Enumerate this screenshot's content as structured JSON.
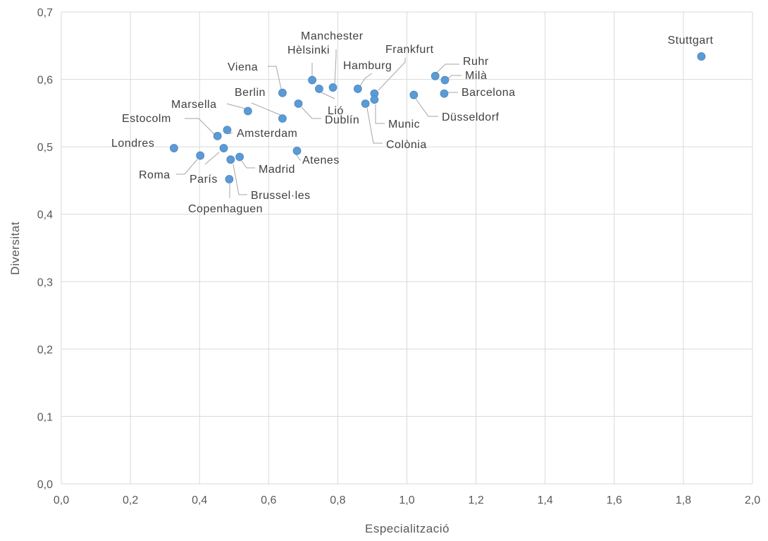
{
  "chart_data": {
    "type": "scatter",
    "title": "",
    "xlabel": "Especialització",
    "ylabel": "Diversitat",
    "xlim": [
      0,
      2.0
    ],
    "ylim": [
      0,
      0.7
    ],
    "xticks": [
      0,
      0.2,
      0.4,
      0.6,
      0.8,
      1.0,
      1.2,
      1.4,
      1.6,
      1.8,
      2.0
    ],
    "yticks": [
      0,
      0.1,
      0.2,
      0.3,
      0.4,
      0.5,
      0.6,
      0.7
    ],
    "xtick_labels": [
      "0,0",
      "0,2",
      "0,4",
      "0,6",
      "0,8",
      "1,0",
      "1,2",
      "1,4",
      "1,6",
      "1,8",
      "2,0"
    ],
    "ytick_labels": [
      "0,0",
      "0,1",
      "0,2",
      "0,3",
      "0,4",
      "0,5",
      "0,6",
      "0,7"
    ],
    "grid": true,
    "marker_color": "#5b9bd5",
    "points": [
      {
        "label": "Stuttgart",
        "x": 1.852,
        "y": 0.634
      },
      {
        "label": "Ruhr",
        "x": 1.082,
        "y": 0.605
      },
      {
        "label": "Milà",
        "x": 1.11,
        "y": 0.599
      },
      {
        "label": "Barcelona",
        "x": 1.108,
        "y": 0.579
      },
      {
        "label": "Düsseldorf",
        "x": 1.02,
        "y": 0.577
      },
      {
        "label": "Frankfurt",
        "x": 0.906,
        "y": 0.579
      },
      {
        "label": "Munic",
        "x": 0.906,
        "y": 0.57
      },
      {
        "label": "Colònia",
        "x": 0.88,
        "y": 0.564
      },
      {
        "label": "Hamburg",
        "x": 0.858,
        "y": 0.586
      },
      {
        "label": "Manchester",
        "x": 0.786,
        "y": 0.588
      },
      {
        "label": "Lió",
        "x": 0.746,
        "y": 0.586
      },
      {
        "label": "Hèlsinki",
        "x": 0.726,
        "y": 0.599
      },
      {
        "label": "Dublín",
        "x": 0.686,
        "y": 0.564
      },
      {
        "label": "Viena",
        "x": 0.64,
        "y": 0.58
      },
      {
        "label": "Berlin",
        "x": 0.64,
        "y": 0.542
      },
      {
        "label": "Marsella",
        "x": 0.54,
        "y": 0.553
      },
      {
        "label": "Amsterdam",
        "x": 0.48,
        "y": 0.525
      },
      {
        "label": "Estocolm",
        "x": 0.452,
        "y": 0.516
      },
      {
        "label": "Londres",
        "x": 0.326,
        "y": 0.498
      },
      {
        "label": "París",
        "x": 0.47,
        "y": 0.498
      },
      {
        "label": "Roma",
        "x": 0.402,
        "y": 0.487
      },
      {
        "label": "Madrid",
        "x": 0.516,
        "y": 0.485
      },
      {
        "label": "Brussel·les",
        "x": 0.49,
        "y": 0.481
      },
      {
        "label": "Copenhaguen",
        "x": 0.486,
        "y": 0.452
      },
      {
        "label": "Atenes",
        "x": 0.682,
        "y": 0.494
      }
    ]
  }
}
